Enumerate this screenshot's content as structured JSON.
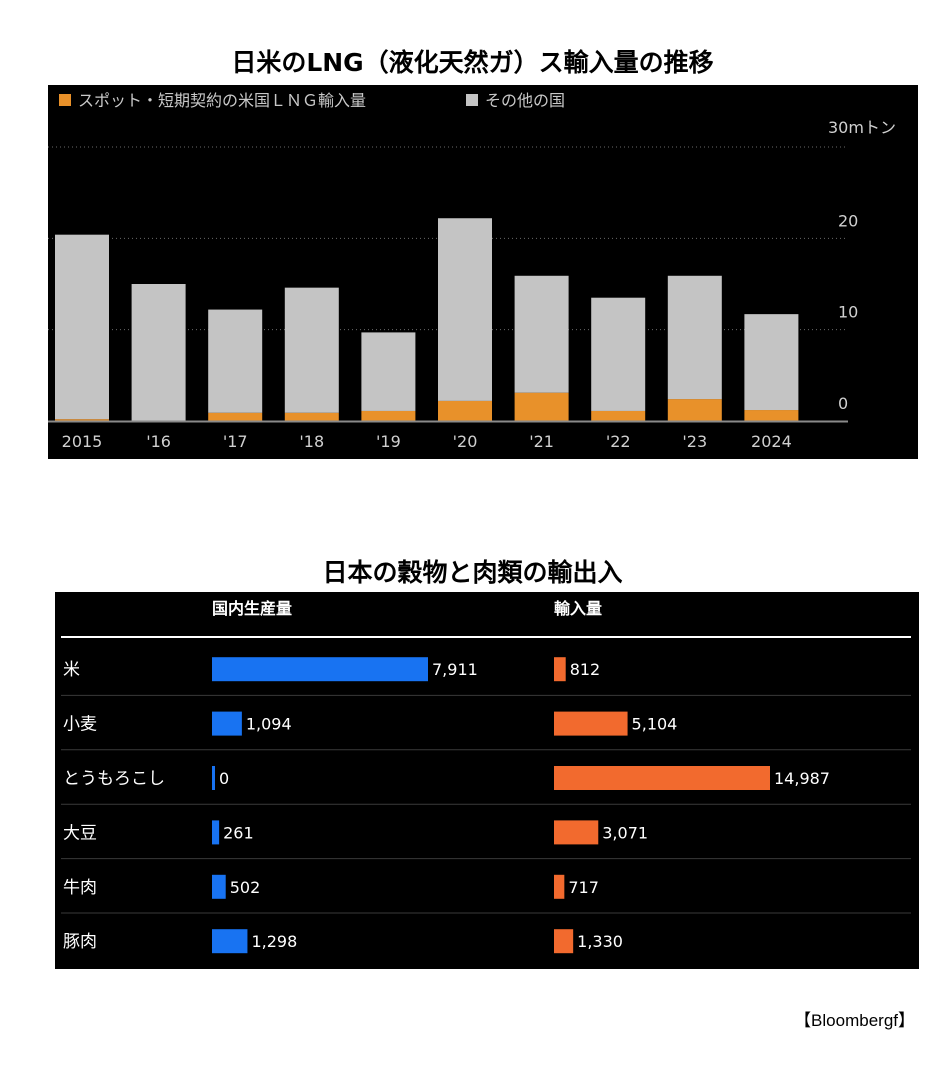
{
  "chart_data": [
    {
      "type": "bar",
      "stacked": true,
      "title": "日米のLNG（液化天然ガ）ス輸入量の推移",
      "unit_label": "30mトン",
      "categories": [
        "2015",
        "'16",
        "'17",
        "'18",
        "'19",
        "'20",
        "'21",
        "'22",
        "'23",
        "2024"
      ],
      "series": [
        {
          "name": "スポット・短期契約の米国ＬＮＧ輸入量",
          "color": "#e8912a",
          "values": [
            0.2,
            0,
            0.9,
            0.9,
            1.1,
            2.2,
            3.1,
            1.1,
            2.4,
            1.2
          ]
        },
        {
          "name": "その他の国",
          "color": "#c4c4c4",
          "values": [
            20.2,
            15.0,
            11.3,
            13.7,
            8.6,
            20.0,
            12.8,
            12.4,
            13.5,
            10.5
          ]
        }
      ],
      "yticks": [
        "0",
        "10",
        "20"
      ],
      "ylim": [
        0,
        30
      ],
      "grid": true,
      "legend": "top-left"
    },
    {
      "type": "table",
      "title": "日本の穀物と肉類の輸出入",
      "columns": [
        "国内生産量",
        "輸入量"
      ],
      "rows": [
        {
          "label": "米",
          "production": 7911,
          "production_label": "7,911",
          "imports": 812,
          "imports_label": "812"
        },
        {
          "label": "小麦",
          "production": 1094,
          "production_label": "1,094",
          "imports": 5104,
          "imports_label": "5,104"
        },
        {
          "label": "とうもろこし",
          "production": 0,
          "production_label": "0",
          "imports": 14987,
          "imports_label": "14,987"
        },
        {
          "label": "大豆",
          "production": 261,
          "production_label": "261",
          "imports": 3071,
          "imports_label": "3,071"
        },
        {
          "label": "牛肉",
          "production": 502,
          "production_label": "502",
          "imports": 717,
          "imports_label": "717"
        },
        {
          "label": "豚肉",
          "production": 1298,
          "production_label": "1,298",
          "imports": 1330,
          "imports_label": "1,330"
        }
      ],
      "colors": {
        "production": "#1873f2",
        "imports": "#f26a2e"
      }
    }
  ],
  "source": "【Bloombergf】"
}
